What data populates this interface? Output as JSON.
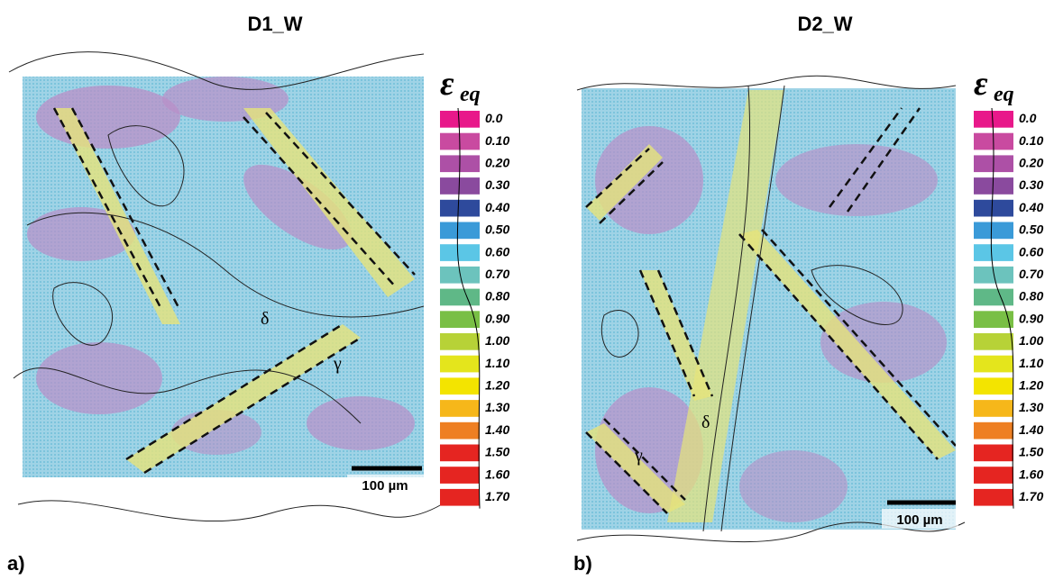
{
  "legend": {
    "symbol": "ε",
    "subscript": "eq",
    "entries": [
      {
        "label": "0.0",
        "color": "#e8188a"
      },
      {
        "label": "0.10",
        "color": "#c94aa0"
      },
      {
        "label": "0.20",
        "color": "#ad50a6"
      },
      {
        "label": "0.30",
        "color": "#8a4a9e"
      },
      {
        "label": "0.40",
        "color": "#2e4a9c"
      },
      {
        "label": "0.50",
        "color": "#3a9ad8"
      },
      {
        "label": "0.60",
        "color": "#5bc6e6"
      },
      {
        "label": "0.70",
        "color": "#6cc3bd"
      },
      {
        "label": "0.80",
        "color": "#5fb887"
      },
      {
        "label": "0.90",
        "color": "#79bf45"
      },
      {
        "label": "1.00",
        "color": "#b7d237"
      },
      {
        "label": "1.10",
        "color": "#e4e51c"
      },
      {
        "label": "1.20",
        "color": "#f3e400"
      },
      {
        "label": "1.30",
        "color": "#f6b71a"
      },
      {
        "label": "1.40",
        "color": "#ee7f22"
      },
      {
        "label": "1.50",
        "color": "#e52521"
      },
      {
        "label": "1.60",
        "color": "#e52521"
      },
      {
        "label": "1.70",
        "color": "#e52521"
      }
    ]
  },
  "panels": [
    {
      "title": "D1_W",
      "label": "a)",
      "scale_bar": "100 µm",
      "phases": [
        "δ",
        "γ"
      ]
    },
    {
      "title": "D2_W",
      "label": "b)",
      "scale_bar": "100 µm",
      "phases": [
        "δ",
        "γ"
      ]
    }
  ]
}
